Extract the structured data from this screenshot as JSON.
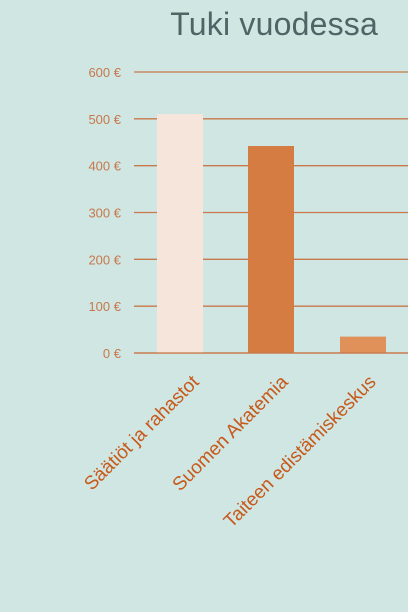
{
  "chart_data": {
    "type": "bar",
    "title": "Tuki vuodessa",
    "categories": [
      "Säätiöt ja rahastot",
      "Suomen Akatemia",
      "Taiteen edistämiskeskus"
    ],
    "values": [
      510,
      442,
      35
    ],
    "ylim": [
      0,
      600
    ],
    "yticks": [
      {
        "value": 0,
        "label": "0 €"
      },
      {
        "value": 100,
        "label": "100 €"
      },
      {
        "value": 200,
        "label": "200 €"
      },
      {
        "value": 300,
        "label": "300 €"
      },
      {
        "value": 400,
        "label": "400 €"
      },
      {
        "value": 500,
        "label": "500 €"
      },
      {
        "value": 600,
        "label": "600 €"
      }
    ],
    "xlabel": "",
    "ylabel": "",
    "grid": true,
    "colors": {
      "background": "#cfe6e3",
      "grid": "#c8784a",
      "axis_text": "#c8784a",
      "category_text": "#c75a1a",
      "title": "#4f6565",
      "bars": [
        "#f6e5da",
        "#d47c42",
        "#e0915a"
      ]
    }
  }
}
